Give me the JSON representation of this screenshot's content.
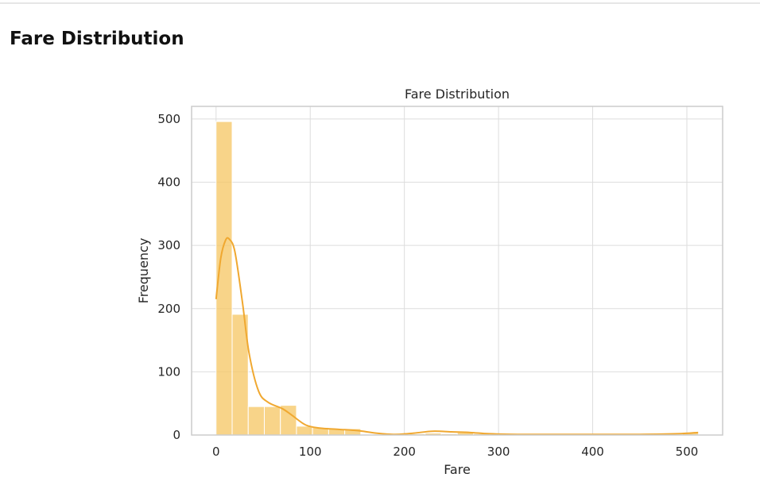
{
  "section": {
    "heading": "Fare Distribution"
  },
  "chart_data": {
    "type": "histogram",
    "title": "Fare Distribution",
    "xlabel": "Fare",
    "ylabel": "Frequency",
    "xlim": [
      -26,
      538
    ],
    "ylim": [
      0,
      520
    ],
    "xticks": [
      0,
      100,
      200,
      300,
      400,
      500
    ],
    "yticks": [
      0,
      100,
      200,
      300,
      400,
      500
    ],
    "grid": true,
    "bin_width": 17.08,
    "bin_start": 0,
    "values": [
      496,
      191,
      45,
      45,
      47,
      14,
      12,
      10,
      10,
      1,
      0,
      2,
      2,
      3,
      2,
      4,
      2,
      0,
      0,
      0,
      0,
      0,
      0,
      0,
      0,
      0,
      0,
      0,
      0,
      3
    ],
    "kde": {
      "x": [
        0,
        5,
        10,
        14,
        20,
        28,
        35,
        45,
        55,
        70,
        80,
        95,
        110,
        130,
        150,
        170,
        190,
        210,
        230,
        250,
        270,
        290,
        320,
        360,
        400,
        450,
        490,
        512
      ],
      "y": [
        215,
        280,
        308,
        310,
        290,
        210,
        130,
        70,
        52,
        42,
        32,
        16,
        11,
        9,
        7,
        3,
        1,
        3,
        6,
        5,
        4,
        2,
        1,
        1,
        1,
        1,
        2,
        4
      ]
    },
    "colors": {
      "bar": "#f5c662",
      "line": "#f0a830"
    }
  }
}
